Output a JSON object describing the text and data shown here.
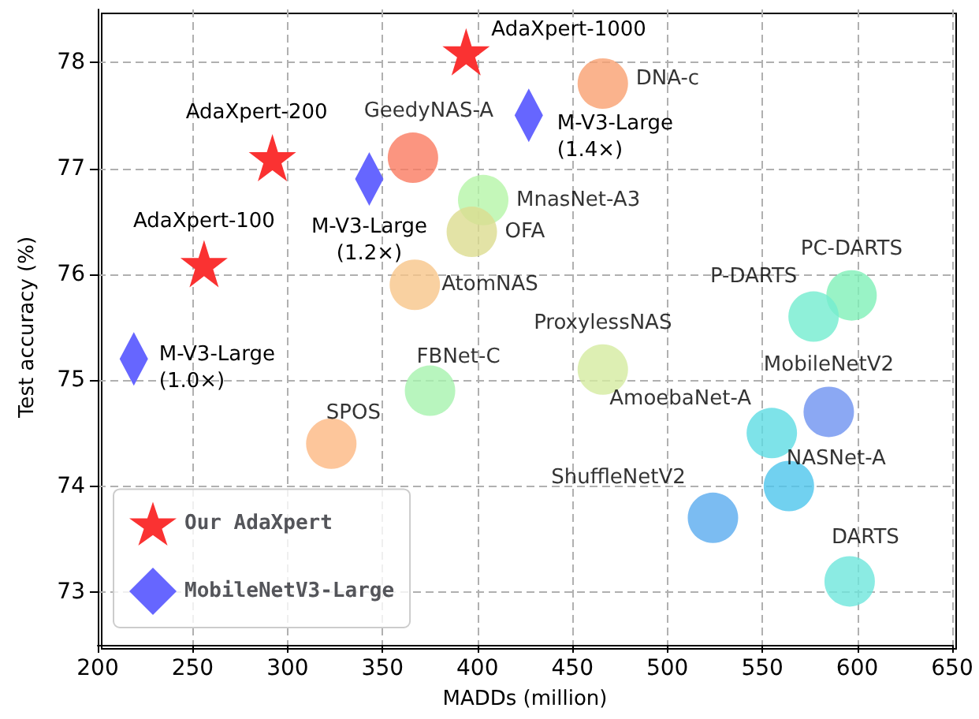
{
  "chart_data": {
    "type": "scatter",
    "xlabel": "MADDs (million)",
    "ylabel": "Test accuracy (%)",
    "xlim": [
      200,
      650
    ],
    "xticks": [
      200,
      250,
      300,
      350,
      400,
      450,
      500,
      550,
      600,
      650
    ],
    "ylim": [
      72.5,
      78.5
    ],
    "yticks": [
      73,
      74,
      75,
      76,
      77,
      78
    ],
    "grid": true,
    "legend": "bottom left",
    "series": [
      {
        "name": "Our AdaXpert",
        "marker": "star",
        "color": "#fa3232",
        "x": [
          256,
          292,
          394
        ],
        "values": [
          76.1,
          77.1,
          78.1
        ],
        "value_labels": [
          "AdaXpert-100",
          "AdaXpert-200",
          "AdaXpert-1000"
        ]
      },
      {
        "name": "MobileNetV3-Large",
        "marker": "diamond",
        "color": "#6666ff",
        "x": [
          219,
          343,
          427
        ],
        "values": [
          75.2,
          76.9,
          77.5
        ],
        "value_labels": [
          "M-V3-Large\n(1.0×)",
          "M-V3-Large\n(1.2×)",
          "M-V3-Large\n(1.4×)"
        ]
      },
      {
        "marker": "circle",
        "x": [
          366,
          466,
          403,
          397,
          367,
          597,
          577,
          466,
          375,
          323,
          585,
          555,
          564,
          524,
          596
        ],
        "values": [
          77.1,
          77.8,
          76.7,
          76.4,
          75.9,
          75.8,
          75.6,
          75.1,
          74.9,
          74.4,
          74.7,
          74.5,
          74.0,
          73.7,
          73.1
        ],
        "colors": [
          "#fa7a60",
          "#f9a070",
          "#b5f5a8",
          "#dcdc90",
          "#f7c68a",
          "#7ff0b8",
          "#73ecd0",
          "#d5eba0",
          "#a6f2ae",
          "#fdb882",
          "#6e92f0",
          "#5edce4",
          "#4ec6ec",
          "#5aabef",
          "#6ee6dc"
        ],
        "value_labels": [
          "GeedyNAS-A",
          "DNA-c",
          "MnasNet-A3",
          "OFA",
          "AtomNAS",
          "PC-DARTS",
          "P-DARTS",
          "ProxylessNAS",
          "FBNet-C",
          "SPOS",
          "MobileNetV2",
          "AmoebaNet-A",
          "NASNet-A",
          "ShuffleNetV2",
          "DARTS"
        ]
      }
    ]
  }
}
